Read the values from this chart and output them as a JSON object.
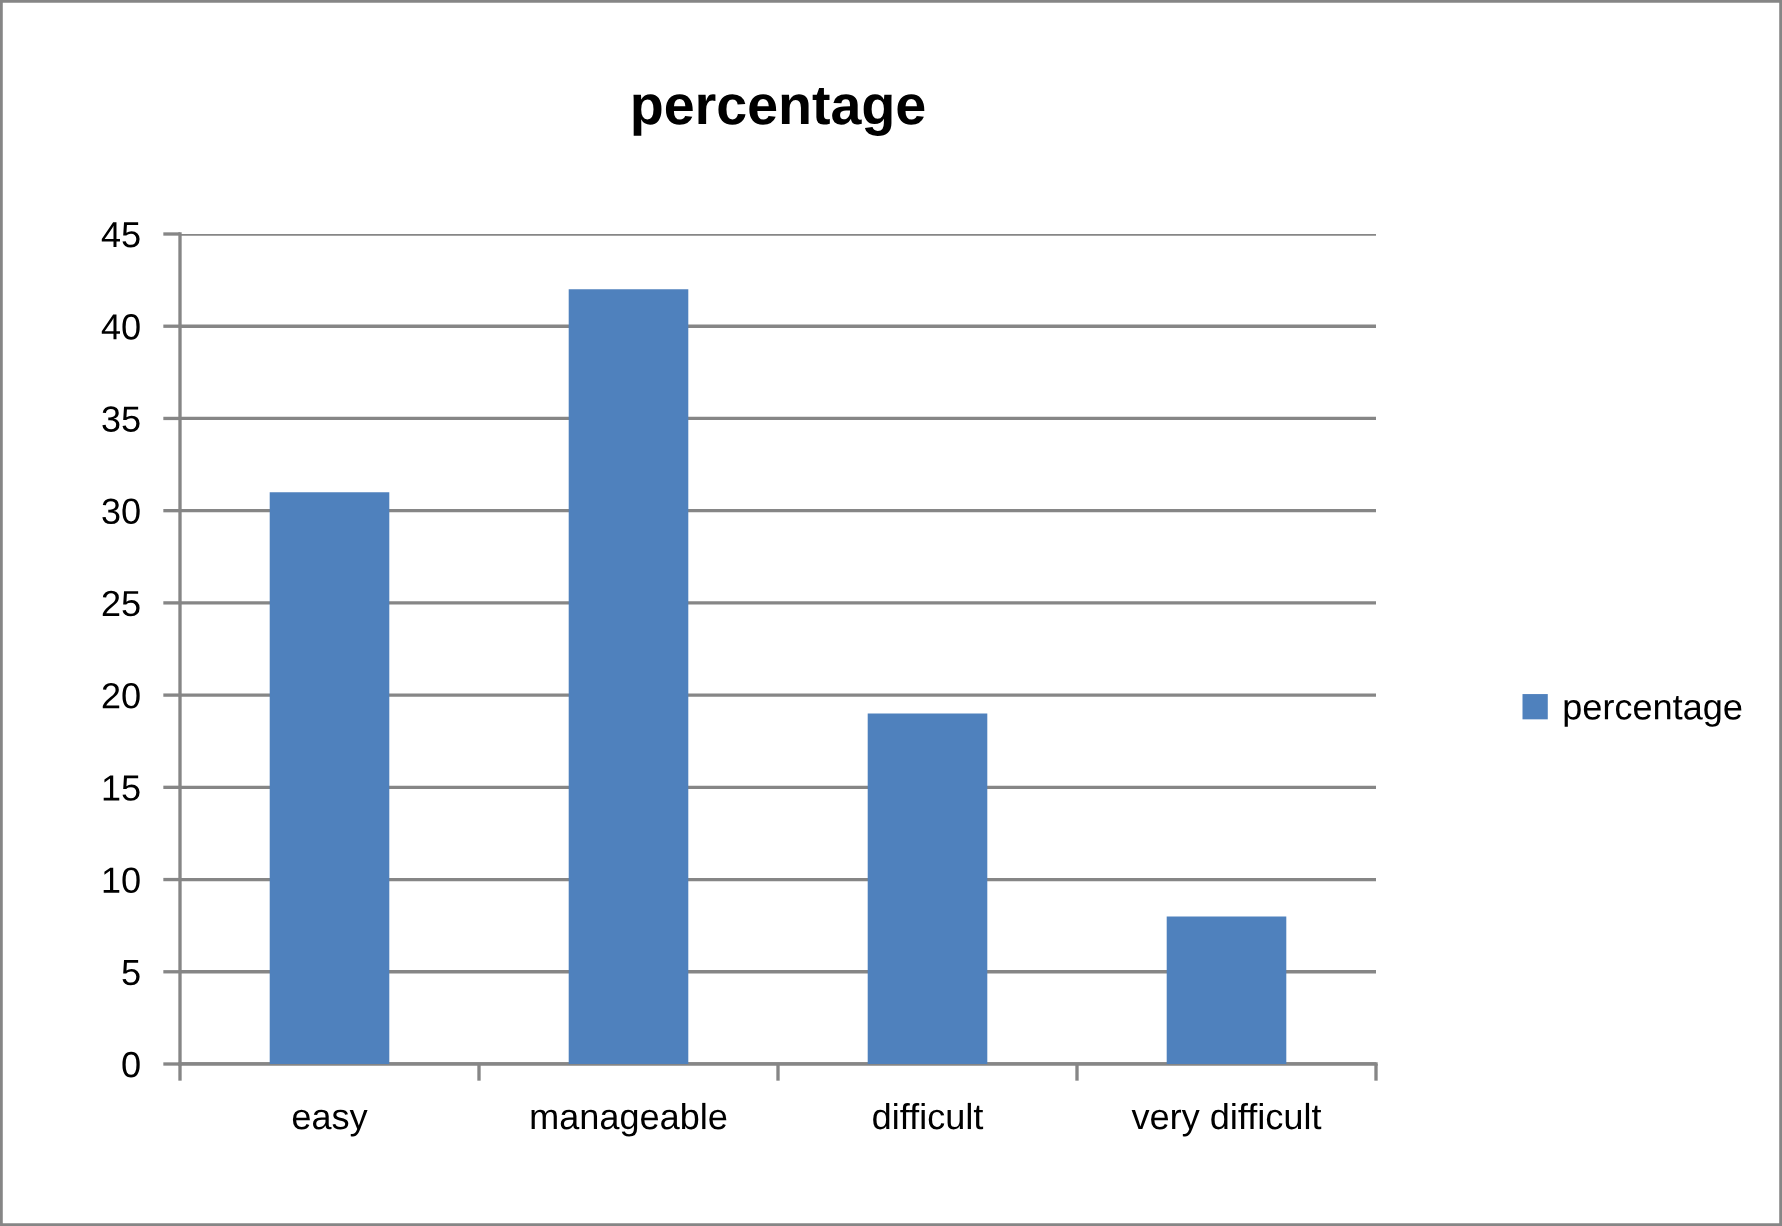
{
  "chart_data": {
    "type": "bar",
    "title": "percentage",
    "categories": [
      "easy",
      "manageable",
      "difficult",
      "very difficult"
    ],
    "series": [
      {
        "name": "percentage",
        "color": "#4f81bd",
        "values": [
          31,
          42,
          19,
          8
        ]
      }
    ],
    "ylim": [
      0,
      45
    ],
    "yticks": [
      0,
      5,
      10,
      15,
      20,
      25,
      30,
      35,
      40,
      45
    ],
    "grid": "y",
    "legend": "right"
  }
}
